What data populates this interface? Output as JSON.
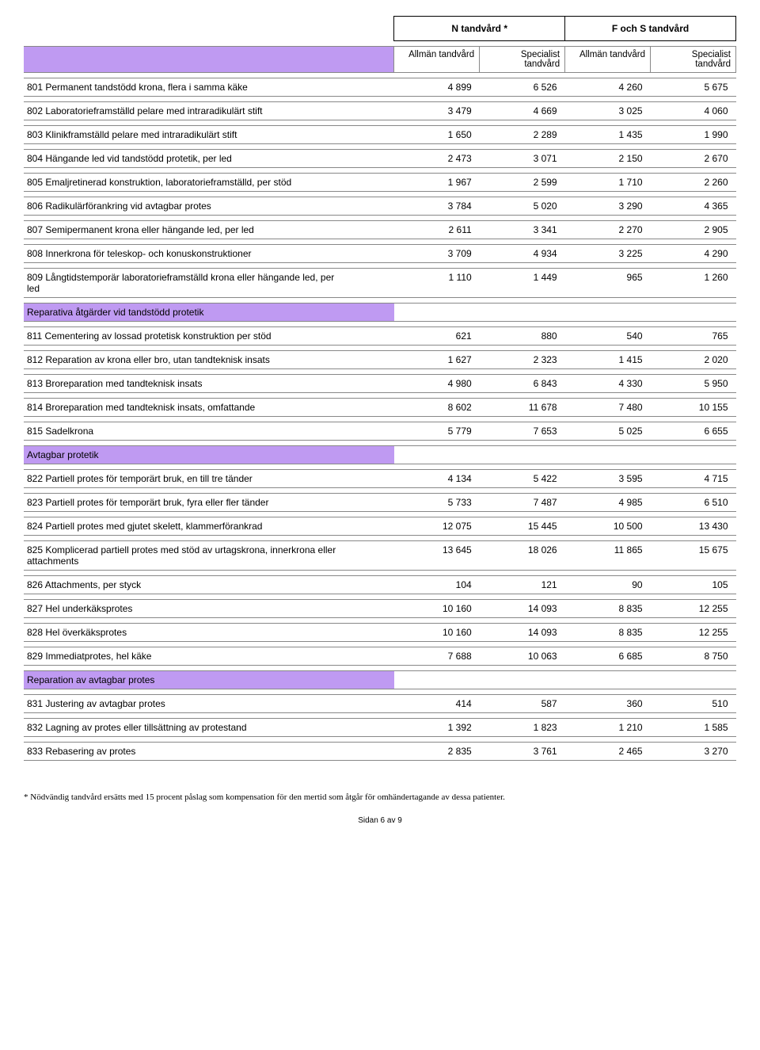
{
  "top_headers": {
    "group1": "N tandvård *",
    "group2": "F och S tandvård"
  },
  "sub_headers": {
    "c1": "Allmän\ntandvård",
    "c2": "Specialist\ntandvård",
    "c3": "Allmän\ntandvård",
    "c4": "Specialist\ntandvård"
  },
  "rows": [
    {
      "type": "data",
      "desc": "801 Permanent tandstödd krona, flera i samma käke",
      "v": [
        "4 899",
        "6 526",
        "4 260",
        "5 675"
      ]
    },
    {
      "type": "data",
      "desc": "802 Laboratorieframställd pelare med intraradikulärt stift",
      "v": [
        "3 479",
        "4 669",
        "3 025",
        "4 060"
      ]
    },
    {
      "type": "data",
      "desc": "803 Klinikframställd pelare med intraradikulärt stift",
      "v": [
        "1 650",
        "2 289",
        "1 435",
        "1 990"
      ]
    },
    {
      "type": "data",
      "desc": "804 Hängande led vid tandstödd protetik, per led",
      "v": [
        "2 473",
        "3 071",
        "2 150",
        "2 670"
      ]
    },
    {
      "type": "data",
      "desc": "805 Emaljretinerad konstruktion, laboratorieframställd, per stöd",
      "v": [
        "1 967",
        "2 599",
        "1 710",
        "2 260"
      ]
    },
    {
      "type": "data",
      "desc": "806 Radikulärförankring vid avtagbar protes",
      "v": [
        "3 784",
        "5 020",
        "3 290",
        "4 365"
      ]
    },
    {
      "type": "data",
      "desc": "807 Semipermanent krona eller hängande led, per led",
      "v": [
        "2 611",
        "3 341",
        "2 270",
        "2 905"
      ]
    },
    {
      "type": "data",
      "desc": "808 Innerkrona för teleskop- och konuskonstruktioner",
      "v": [
        "3 709",
        "4 934",
        "3 225",
        "4 290"
      ]
    },
    {
      "type": "data",
      "desc": "809 Långtidstemporär laboratorieframställd krona eller hängande led, per\n      led",
      "v": [
        "1 110",
        "1 449",
        "965",
        "1 260"
      ]
    },
    {
      "type": "section",
      "desc": "Reparativa åtgärder vid tandstödd protetik"
    },
    {
      "type": "data",
      "desc": "811 Cementering av lossad protetisk konstruktion per stöd",
      "v": [
        "621",
        "880",
        "540",
        "765"
      ]
    },
    {
      "type": "data",
      "desc": "812 Reparation av krona eller bro, utan tandteknisk insats",
      "v": [
        "1 627",
        "2 323",
        "1 415",
        "2 020"
      ]
    },
    {
      "type": "data",
      "desc": "813 Broreparation med tandteknisk insats",
      "v": [
        "4 980",
        "6 843",
        "4 330",
        "5 950"
      ]
    },
    {
      "type": "data",
      "desc": "814 Broreparation med tandteknisk insats, omfattande",
      "v": [
        "8 602",
        "11 678",
        "7 480",
        "10 155"
      ]
    },
    {
      "type": "data",
      "desc": "815 Sadelkrona",
      "v": [
        "5 779",
        "7 653",
        "5 025",
        "6 655"
      ]
    },
    {
      "type": "section",
      "desc": "Avtagbar protetik"
    },
    {
      "type": "data",
      "desc": "822 Partiell protes för temporärt bruk, en till tre tänder",
      "v": [
        "4 134",
        "5 422",
        "3 595",
        "4 715"
      ]
    },
    {
      "type": "data",
      "desc": "823 Partiell protes för temporärt bruk, fyra eller fler tänder",
      "v": [
        "5 733",
        "7 487",
        "4 985",
        "6 510"
      ]
    },
    {
      "type": "data",
      "desc": "824 Partiell protes med gjutet skelett, klammerförankrad",
      "v": [
        "12 075",
        "15 445",
        "10 500",
        "13 430"
      ]
    },
    {
      "type": "data",
      "desc": "825 Komplicerad partiell protes med stöd av urtagskrona, innerkrona eller\n      attachments",
      "v": [
        "13 645",
        "18 026",
        "11 865",
        "15 675"
      ]
    },
    {
      "type": "data",
      "desc": "826 Attachments, per styck",
      "v": [
        "104",
        "121",
        "90",
        "105"
      ]
    },
    {
      "type": "data",
      "desc": "827 Hel underkäksprotes",
      "v": [
        "10 160",
        "14 093",
        "8 835",
        "12 255"
      ]
    },
    {
      "type": "data",
      "desc": "828 Hel överkäksprotes",
      "v": [
        "10 160",
        "14 093",
        "8 835",
        "12 255"
      ]
    },
    {
      "type": "data",
      "desc": "829 Immediatprotes, hel käke",
      "v": [
        "7 688",
        "10 063",
        "6 685",
        "8 750"
      ]
    },
    {
      "type": "section",
      "desc": "Reparation av avtagbar protes"
    },
    {
      "type": "data",
      "desc": "831 Justering av avtagbar protes",
      "v": [
        "414",
        "587",
        "360",
        "510"
      ]
    },
    {
      "type": "data",
      "desc": "832 Lagning av protes eller tillsättning av protestand",
      "v": [
        "1 392",
        "1 823",
        "1 210",
        "1 585"
      ]
    },
    {
      "type": "data",
      "desc": "833 Rebasering av protes",
      "v": [
        "2 835",
        "3 761",
        "2 465",
        "3 270"
      ]
    }
  ],
  "footnote": "* Nödvändig tandvård ersätts med 15 procent påslag som kompensation för den mertid som åtgår för omhändertagande av dessa patienter.",
  "pagenum": "Sidan 6 av 9",
  "colors": {
    "purple": "#bf9af2",
    "border": "#888888",
    "header_border": "#000000",
    "bg": "#ffffff",
    "text": "#000000"
  }
}
